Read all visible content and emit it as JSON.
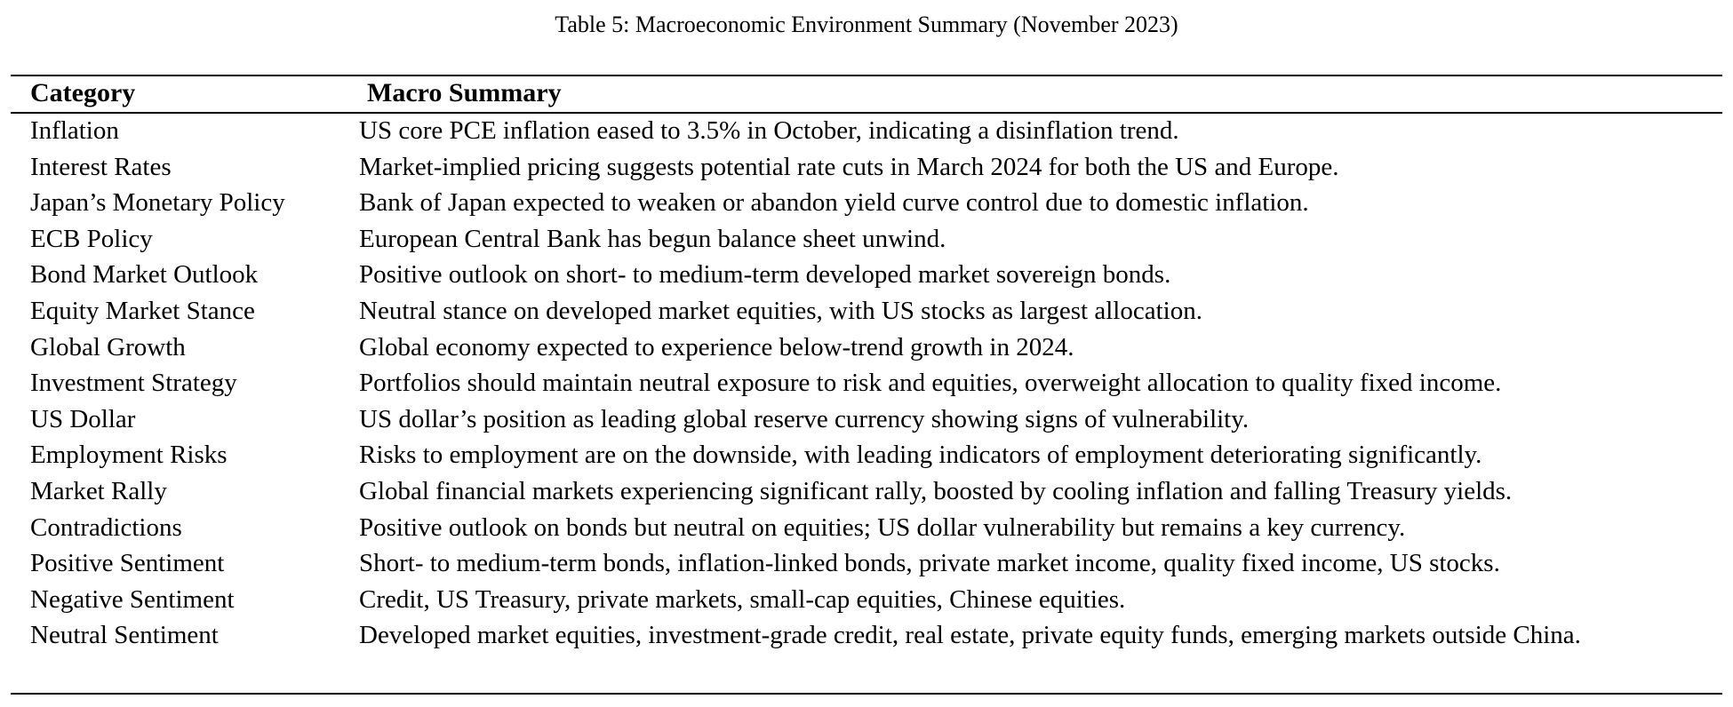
{
  "caption": "Table 5: Macroeconomic Environment Summary (November 2023)",
  "headers": {
    "category": "Category",
    "summary": "Macro Summary"
  },
  "rows": [
    {
      "category": "Inflation",
      "summary": "US core PCE inflation eased to 3.5% in October, indicating a disinflation trend."
    },
    {
      "category": "Interest Rates",
      "summary": "Market-implied pricing suggests potential rate cuts in March 2024 for both the US and Europe."
    },
    {
      "category": "Japan’s Monetary Policy",
      "summary": "Bank of Japan expected to weaken or abandon yield curve control due to domestic inflation."
    },
    {
      "category": "ECB Policy",
      "summary": "European Central Bank has begun balance sheet unwind."
    },
    {
      "category": "Bond Market Outlook",
      "summary": "Positive outlook on short- to medium-term developed market sovereign bonds."
    },
    {
      "category": "Equity Market Stance",
      "summary": "Neutral stance on developed market equities, with US stocks as largest allocation."
    },
    {
      "category": "Global Growth",
      "summary": "Global economy expected to experience below-trend growth in 2024."
    },
    {
      "category": "Investment Strategy",
      "summary": "Portfolios should maintain neutral exposure to risk and equities, overweight allocation to quality fixed income."
    },
    {
      "category": "US Dollar",
      "summary": "US dollar’s position as leading global reserve currency showing signs of vulnerability."
    },
    {
      "category": "Employment Risks",
      "summary": "Risks to employment are on the downside, with leading indicators of employment deteriorating significantly."
    },
    {
      "category": "Market Rally",
      "summary": "Global financial markets experiencing significant rally, boosted by cooling inflation and falling Treasury yields."
    },
    {
      "category": "Contradictions",
      "summary": "Positive outlook on bonds but neutral on equities; US dollar vulnerability but remains a key currency."
    },
    {
      "category": "Positive Sentiment",
      "summary": "Short- to medium-term bonds, inflation-linked bonds, private market income, quality fixed income, US stocks."
    },
    {
      "category": "Negative Sentiment",
      "summary": "Credit, US Treasury, private markets, small-cap equities, Chinese equities."
    },
    {
      "category": "Neutral Sentiment",
      "summary": "Developed market equities, investment-grade credit, real estate, private equity funds, emerging markets outside China."
    }
  ]
}
